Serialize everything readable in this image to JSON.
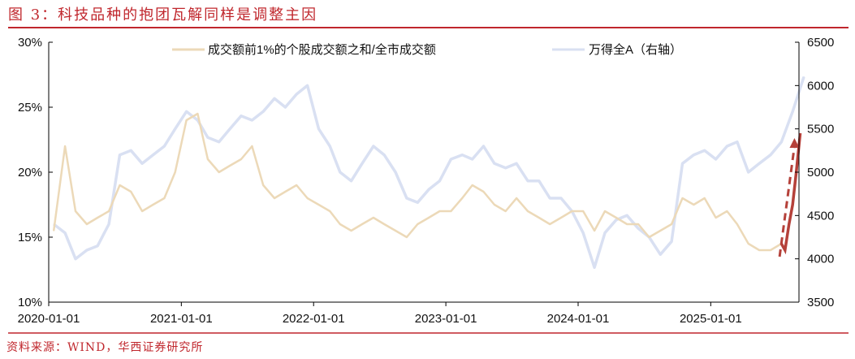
{
  "title": "图 3：科技品种的抱团瓦解同样是调整主因",
  "source": "资料来源：WIND，华西证券研究所",
  "colors": {
    "title": "#c0272d",
    "pct": "#ecd9b8",
    "index": "#d9e0f2",
    "highlight": "#b5413a"
  },
  "chart_data": {
    "type": "line",
    "x_ticks": [
      "2020-01-01",
      "2021-01-01",
      "2022-01-01",
      "2023-01-01",
      "2024-01-01",
      "2025-01-01"
    ],
    "y_left": {
      "ticks": [
        "10%",
        "15%",
        "20%",
        "25%",
        "30%"
      ],
      "range": [
        10,
        30
      ]
    },
    "y_right": {
      "ticks": [
        "3500",
        "4000",
        "4500",
        "5000",
        "5500",
        "6000",
        "6500"
      ],
      "range": [
        3500,
        6500
      ]
    },
    "grid": false,
    "legend_position": "top",
    "months": [
      "2020-01",
      "2020-02",
      "2020-03",
      "2020-04",
      "2020-05",
      "2020-06",
      "2020-07",
      "2020-08",
      "2020-09",
      "2020-10",
      "2020-11",
      "2020-12",
      "2021-01",
      "2021-02",
      "2021-03",
      "2021-04",
      "2021-05",
      "2021-06",
      "2021-07",
      "2021-08",
      "2021-09",
      "2021-10",
      "2021-11",
      "2021-12",
      "2022-01",
      "2022-02",
      "2022-03",
      "2022-04",
      "2022-05",
      "2022-06",
      "2022-07",
      "2022-08",
      "2022-09",
      "2022-10",
      "2022-11",
      "2022-12",
      "2023-01",
      "2023-02",
      "2023-03",
      "2023-04",
      "2023-05",
      "2023-06",
      "2023-07",
      "2023-08",
      "2023-09",
      "2023-10",
      "2023-11",
      "2023-12",
      "2024-01",
      "2024-02",
      "2024-03",
      "2024-04",
      "2024-05",
      "2024-06",
      "2024-07",
      "2024-08",
      "2024-09",
      "2024-10",
      "2024-11",
      "2024-12",
      "2025-01",
      "2025-02",
      "2025-03",
      "2025-04",
      "2025-05",
      "2025-06",
      "2025-07",
      "2025-08",
      "2025-09"
    ],
    "series": [
      {
        "name": "成交额前1%的个股成交额之和/全市成交额",
        "axis": "left",
        "values": [
          15.5,
          22,
          17,
          16,
          16.5,
          17,
          19,
          18.5,
          17,
          17.5,
          18,
          20,
          24,
          24.5,
          21,
          20,
          20.5,
          21,
          22,
          19,
          18,
          18.5,
          19,
          18,
          17.5,
          17,
          16,
          15.5,
          16,
          16.5,
          16,
          15.5,
          15,
          16,
          16.5,
          17,
          17,
          18,
          19,
          18.5,
          17.5,
          17,
          18,
          17,
          16.5,
          16,
          16.5,
          17,
          17,
          15.5,
          17,
          16.5,
          16,
          16,
          15,
          15.5,
          16,
          18,
          17.5,
          18,
          16.5,
          17,
          16,
          14.5,
          14,
          14,
          14.5,
          null,
          null
        ]
      },
      {
        "name": "万得全A（右轴）",
        "axis": "right",
        "values": [
          4400,
          4300,
          4000,
          4100,
          4150,
          4400,
          5200,
          5250,
          5100,
          5200,
          5300,
          5500,
          5700,
          5600,
          5400,
          5350,
          5500,
          5650,
          5600,
          5700,
          5850,
          5750,
          5900,
          6000,
          5500,
          5300,
          5000,
          4900,
          5100,
          5300,
          5200,
          5000,
          4700,
          4650,
          4800,
          4900,
          5150,
          5200,
          5150,
          5300,
          5100,
          5050,
          5100,
          4900,
          4900,
          4700,
          4700,
          4550,
          4300,
          3900,
          4300,
          4450,
          4500,
          4350,
          4250,
          4050,
          4200,
          5100,
          5200,
          5250,
          5150,
          5300,
          5350,
          5000,
          5100,
          5200,
          5350,
          5700,
          6100
        ]
      }
    ],
    "highlight": {
      "axis": "left",
      "dates": [
        "2025-07-15",
        "2025-07-25",
        "2025-08-05",
        "2025-08-15",
        "2025-08-25",
        "2025-09-05"
      ],
      "values": [
        14.5,
        14,
        16,
        17.5,
        20,
        23
      ]
    },
    "annotation_arrow": {
      "style": "dashed",
      "from": [
        "2025-07-10",
        13.5
      ],
      "to": [
        "2025-08-20",
        22.5
      ]
    }
  }
}
